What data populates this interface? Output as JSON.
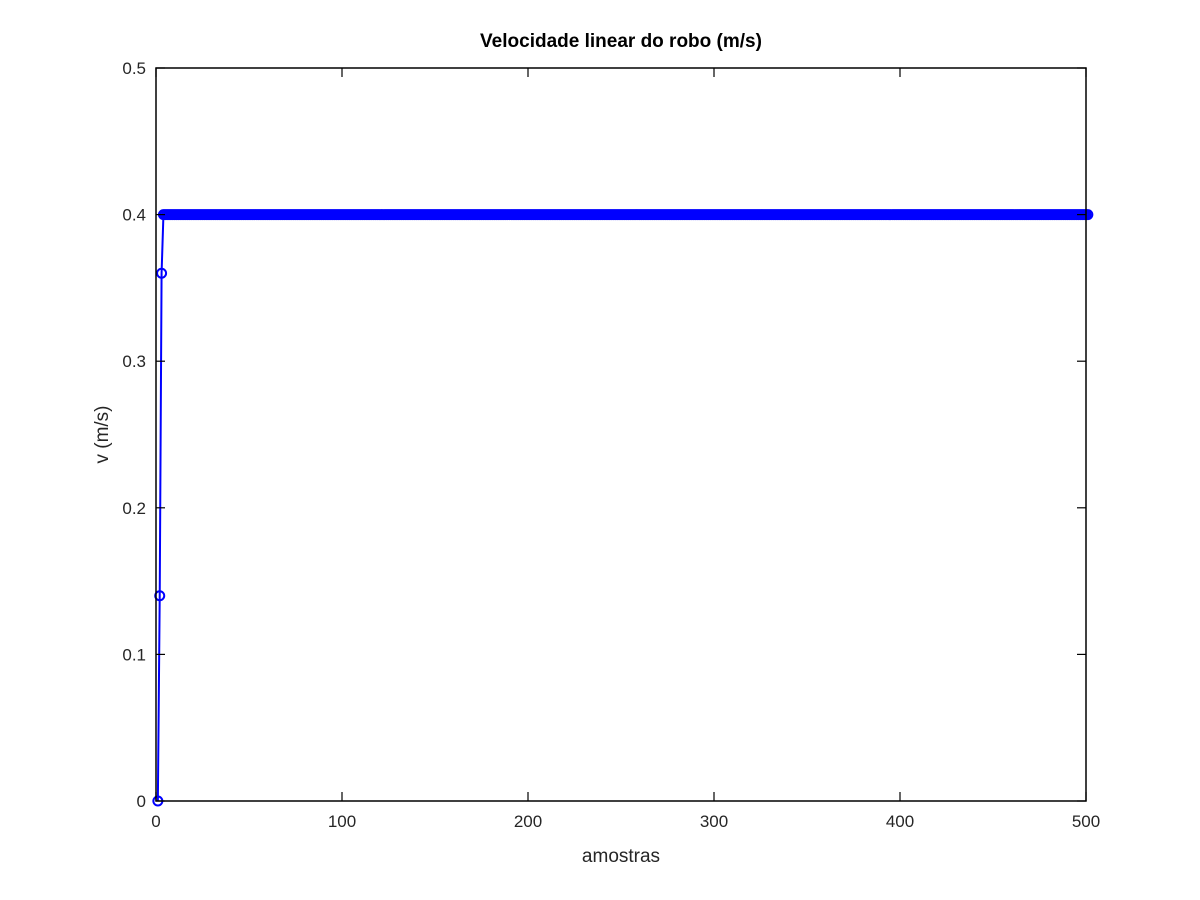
{
  "chart_data": {
    "type": "line",
    "title": "Velocidade linear do robo (m/s)",
    "xlabel": "amostras",
    "ylabel": "v (m/s)",
    "xlim": [
      0,
      500
    ],
    "ylim": [
      0,
      0.5
    ],
    "xticks": [
      0,
      100,
      200,
      300,
      400,
      500
    ],
    "xtick_labels": [
      "0",
      "100",
      "200",
      "300",
      "400",
      "500"
    ],
    "yticks": [
      0,
      0.1,
      0.2,
      0.3,
      0.4,
      0.5
    ],
    "ytick_labels": [
      "0",
      "0.1",
      "0.2",
      "0.3",
      "0.4",
      "0.5"
    ],
    "grid": false,
    "marker": "circle",
    "series": [
      {
        "color": "#0000ff",
        "x_start": 1,
        "x_end": 501,
        "ramp": [
          [
            1,
            0
          ],
          [
            2,
            0.14
          ],
          [
            3,
            0.36
          ],
          [
            4,
            0.4
          ]
        ],
        "steady_value": 0.4
      }
    ]
  }
}
